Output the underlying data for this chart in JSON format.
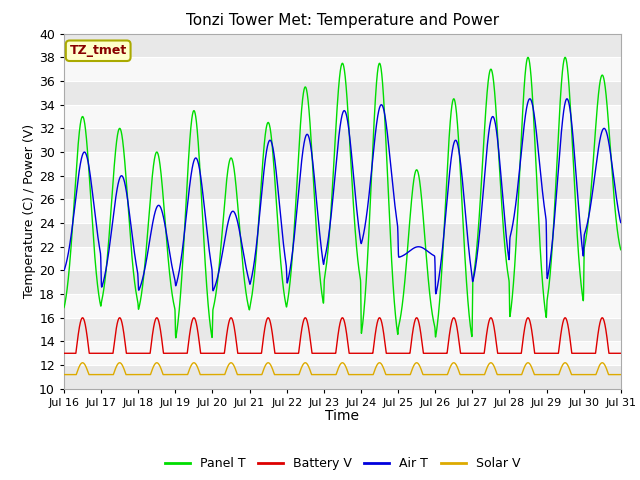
{
  "title": "Tonzi Tower Met: Temperature and Power",
  "xlabel": "Time",
  "ylabel": "Temperature (C) / Power (V)",
  "ylim": [
    10,
    40
  ],
  "yticks": [
    10,
    12,
    14,
    16,
    18,
    20,
    22,
    24,
    26,
    28,
    30,
    32,
    34,
    36,
    38,
    40
  ],
  "xtick_labels": [
    "Jul 16",
    "Jul 17",
    "Jul 18",
    "Jul 19",
    "Jul 20",
    "Jul 21",
    "Jul 22",
    "Jul 23",
    "Jul 24",
    "Jul 25",
    "Jul 26",
    "Jul 27",
    "Jul 28",
    "Jul 29",
    "Jul 30",
    "Jul 31"
  ],
  "colors": {
    "panel_t": "#00dd00",
    "battery_v": "#dd0000",
    "air_t": "#0000dd",
    "solar_v": "#ddaa00",
    "background_light": "#f0f0f0",
    "background_dark": "#dcdcdc",
    "grid": "#ffffff",
    "annotation_bg": "#ffffcc",
    "annotation_text": "#880000",
    "annotation_border": "#aaaa00",
    "fig_bg": "#ffffff"
  },
  "legend": [
    "Panel T",
    "Battery V",
    "Air T",
    "Solar V"
  ],
  "annotation_text": "TZ_tmet",
  "num_days": 15,
  "panel_peaks": [
    33.0,
    32.0,
    30.0,
    33.5,
    29.5,
    32.5,
    35.5,
    37.5,
    37.5,
    28.5,
    34.5,
    37.0,
    38.0,
    38.0,
    36.5
  ],
  "panel_troughs": [
    15.5,
    16.0,
    15.5,
    12.5,
    15.5,
    15.5,
    15.5,
    17.5,
    12.5,
    14.0,
    12.5,
    17.5,
    14.0,
    15.5,
    20.5
  ],
  "air_peaks": [
    30.0,
    28.0,
    25.5,
    29.5,
    25.0,
    31.0,
    31.5,
    33.5,
    34.0,
    22.0,
    31.0,
    33.0,
    34.5,
    34.5,
    32.0
  ],
  "air_troughs": [
    19.0,
    17.5,
    17.5,
    17.5,
    17.5,
    17.5,
    17.5,
    19.5,
    21.0,
    21.0,
    16.5,
    17.5,
    21.5,
    17.5,
    22.0
  ],
  "bat_base": 13.0,
  "bat_peak": 16.0,
  "sol_base": 11.2,
  "sol_peak": 12.2,
  "figsize": [
    6.4,
    4.8
  ],
  "dpi": 100
}
